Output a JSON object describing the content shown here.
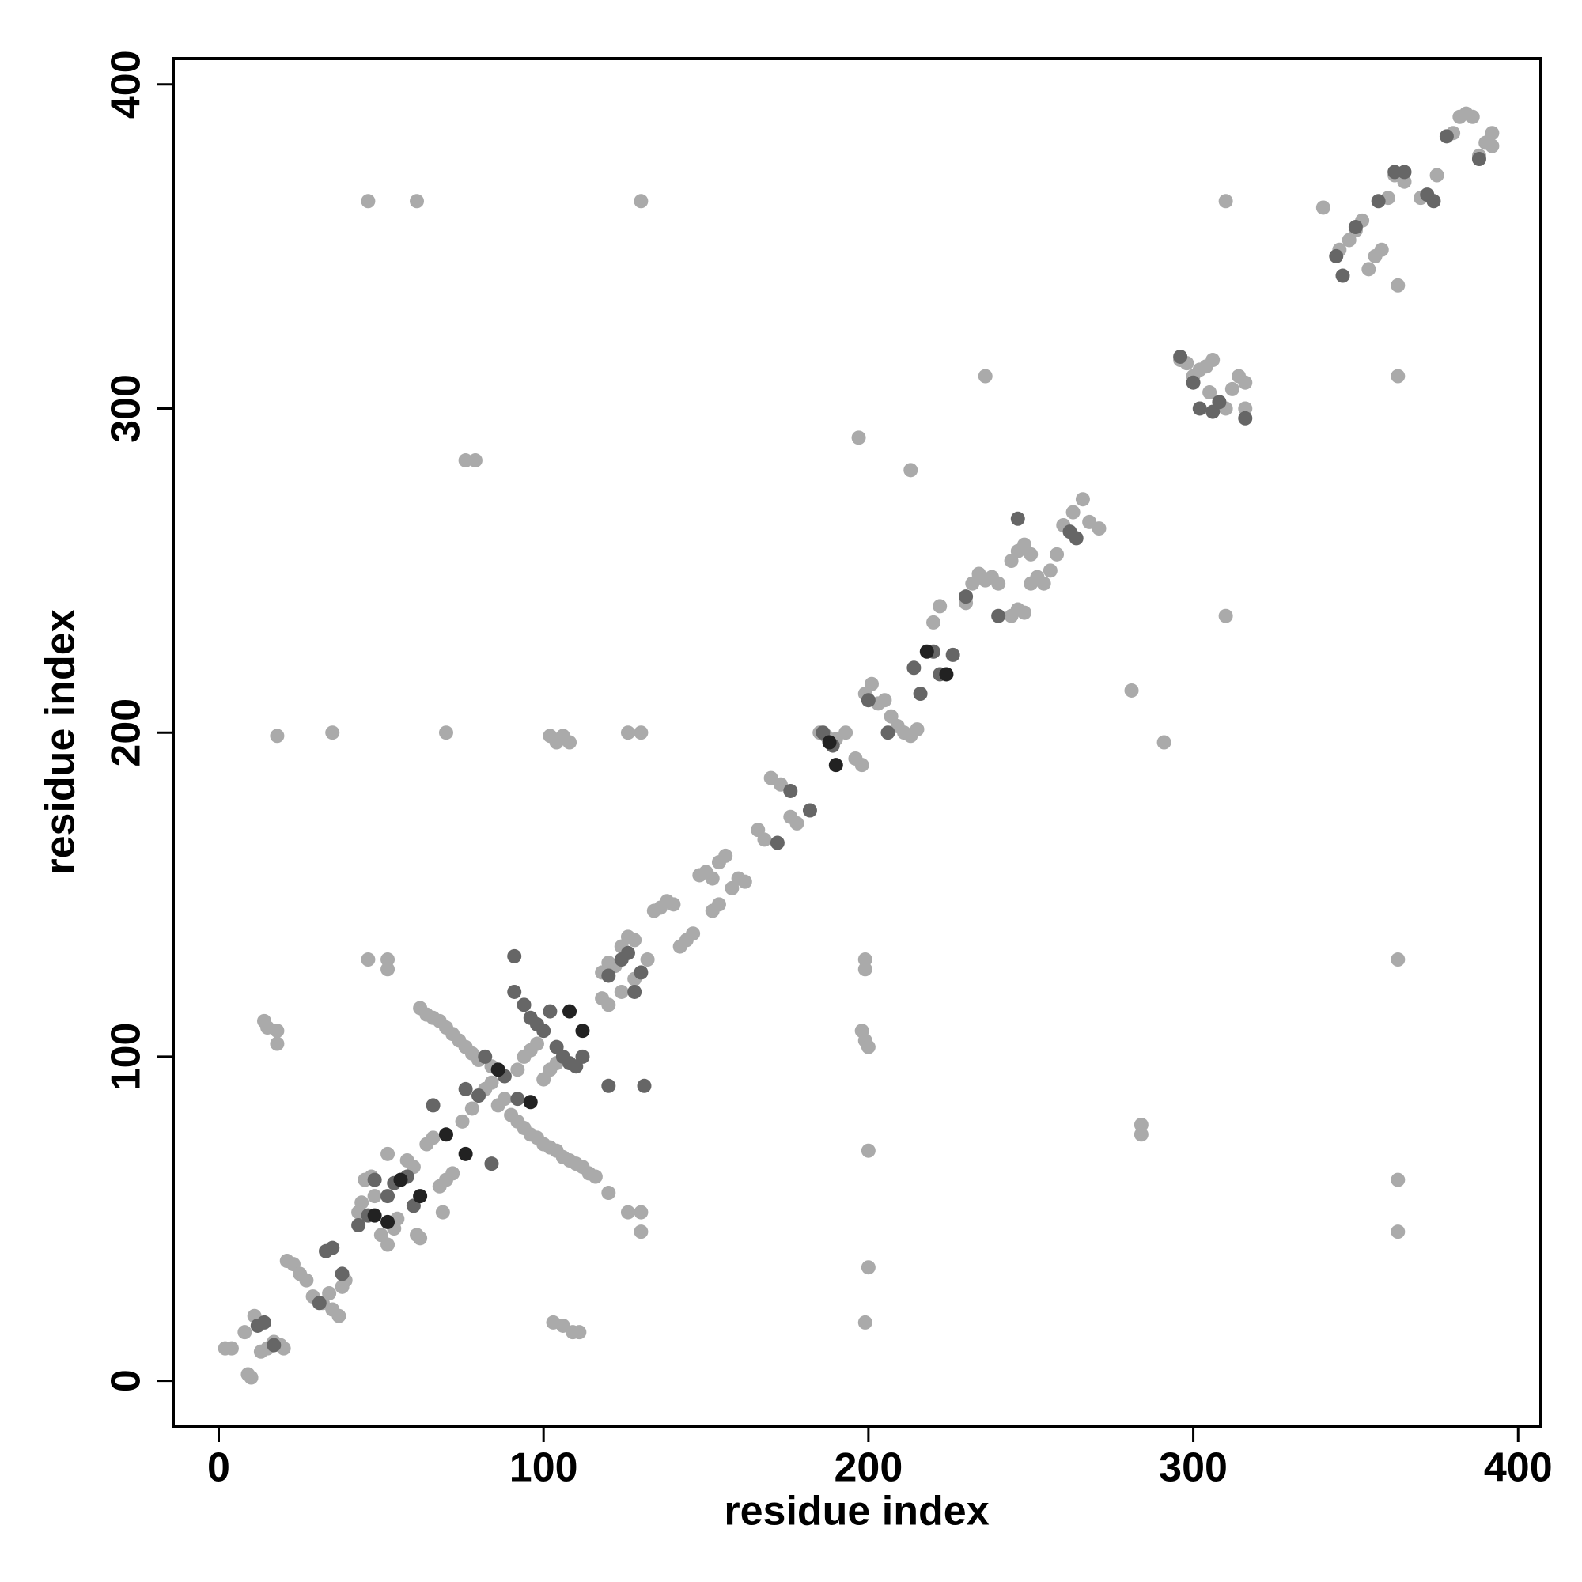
{
  "chart_data": {
    "type": "scatter",
    "xlabel": "residue index",
    "ylabel": "residue index",
    "xlim": [
      -14,
      407
    ],
    "ylim": [
      -14,
      408
    ],
    "xticks": [
      0,
      100,
      200,
      300,
      400
    ],
    "yticks": [
      0,
      100,
      200,
      300,
      400
    ],
    "series": [
      {
        "color": "#aaaaaa",
        "x": [
          2,
          4,
          8,
          9,
          10,
          11,
          13,
          15,
          17,
          19,
          20,
          21,
          23,
          25,
          27,
          29,
          32,
          34,
          35,
          37,
          38,
          39,
          43,
          44,
          45,
          47,
          48,
          50,
          52,
          52,
          54,
          55,
          58,
          60,
          62,
          64,
          66,
          68,
          70,
          72,
          75,
          78,
          80,
          82,
          84,
          86,
          88,
          90,
          92,
          94,
          96,
          98,
          100,
          102,
          104,
          62,
          64,
          66,
          68,
          70,
          72,
          74,
          76,
          78,
          80,
          84,
          92,
          94,
          96,
          98,
          100,
          102,
          104,
          106,
          108,
          110,
          112,
          114,
          116,
          120,
          118,
          120,
          122,
          124,
          126,
          128,
          118,
          120,
          124,
          128,
          132,
          134,
          136,
          138,
          140,
          142,
          144,
          146,
          148,
          150,
          152,
          154,
          156,
          152,
          154,
          158,
          160,
          162,
          166,
          168,
          170,
          173,
          176,
          178,
          185,
          187,
          190,
          193,
          196,
          198,
          199,
          201,
          203,
          205,
          207,
          209,
          211,
          213,
          215,
          220,
          222,
          230,
          232,
          234,
          236,
          238,
          240,
          244,
          246,
          248,
          250,
          244,
          246,
          248,
          250,
          252,
          254,
          256,
          258,
          260,
          263,
          266,
          268,
          271,
          296,
          298,
          300,
          302,
          304,
          306,
          308,
          310,
          312,
          314,
          316,
          316,
          305,
          340,
          345,
          348,
          350,
          352,
          354,
          356,
          358,
          360,
          362,
          365,
          363,
          370,
          375,
          380,
          382,
          384,
          386,
          388,
          390,
          392,
          392,
          46,
          61,
          130,
          310,
          236,
          363,
          76,
          79,
          197,
          213,
          281,
          291,
          310,
          18,
          35,
          70,
          102,
          104,
          106,
          108,
          126,
          130,
          46,
          52,
          52,
          363,
          199,
          199,
          14,
          15,
          18,
          18,
          198,
          199,
          200,
          284,
          284,
          200,
          363,
          363,
          200,
          199,
          103,
          106,
          109,
          111,
          126,
          130,
          130,
          61,
          69
        ],
        "values": [
          10,
          10,
          15,
          2,
          1,
          20,
          9,
          10,
          12,
          11,
          10,
          37,
          36,
          33,
          31,
          26,
          24,
          27,
          22,
          20,
          29,
          31,
          52,
          55,
          62,
          63,
          57,
          45,
          42,
          70,
          47,
          50,
          68,
          66,
          44,
          73,
          75,
          60,
          62,
          64,
          80,
          84,
          88,
          90,
          92,
          85,
          87,
          82,
          96,
          100,
          102,
          104,
          93,
          96,
          98,
          115,
          113,
          112,
          111,
          109,
          107,
          105,
          103,
          101,
          99,
          97,
          80,
          78,
          76,
          75,
          73,
          72,
          71,
          69,
          68,
          67,
          66,
          64,
          63,
          58,
          126,
          129,
          128,
          134,
          137,
          136,
          118,
          116,
          120,
          124,
          130,
          145,
          146,
          148,
          147,
          134,
          136,
          138,
          156,
          157,
          155,
          160,
          162,
          145,
          147,
          152,
          155,
          154,
          170,
          167,
          186,
          184,
          174,
          172,
          200,
          199,
          198,
          200,
          192,
          190,
          212,
          215,
          209,
          210,
          205,
          202,
          200,
          199,
          201,
          234,
          239,
          240,
          246,
          249,
          247,
          248,
          246,
          253,
          256,
          258,
          255,
          236,
          238,
          237,
          246,
          248,
          246,
          250,
          255,
          264,
          268,
          272,
          265,
          263,
          315,
          314,
          310,
          312,
          313,
          315,
          302,
          300,
          306,
          310,
          308,
          300,
          305,
          362,
          349,
          352,
          355,
          358,
          343,
          347,
          349,
          365,
          372,
          370,
          338,
          365,
          372,
          385,
          390,
          391,
          390,
          378,
          382,
          385,
          381,
          364,
          364,
          364,
          364,
          310,
          310,
          284,
          284,
          291,
          281,
          213,
          197,
          236,
          199,
          200,
          200,
          199,
          197,
          199,
          197,
          200,
          200,
          130,
          130,
          127,
          130,
          130,
          127,
          111,
          109,
          108,
          104,
          108,
          105,
          103,
          79,
          76,
          71,
          62,
          46,
          35,
          18,
          18,
          17,
          15,
          15,
          52,
          52,
          46,
          45,
          52
        ]
      },
      {
        "color": "#666666",
        "x": [
          12,
          14,
          17,
          31,
          33,
          35,
          38,
          43,
          46,
          48,
          52,
          54,
          58,
          60,
          66,
          76,
          80,
          82,
          84,
          88,
          91,
          91,
          92,
          94,
          96,
          98,
          100,
          102,
          104,
          106,
          108,
          110,
          112,
          120,
          131,
          120,
          124,
          126,
          130,
          128,
          172,
          176,
          182,
          186,
          189,
          200,
          206,
          214,
          216,
          220,
          222,
          226,
          230,
          240,
          246,
          262,
          264,
          296,
          300,
          302,
          306,
          308,
          316,
          344,
          346,
          350,
          357,
          362,
          365,
          372,
          374,
          378,
          388
        ],
        "values": [
          17,
          18,
          11,
          24,
          40,
          41,
          33,
          48,
          51,
          62,
          57,
          61,
          63,
          54,
          85,
          90,
          88,
          100,
          67,
          94,
          131,
          120,
          87,
          116,
          112,
          110,
          108,
          114,
          103,
          100,
          98,
          97,
          100,
          91,
          91,
          125,
          130,
          132,
          126,
          120,
          166,
          182,
          176,
          200,
          196,
          210,
          200,
          220,
          212,
          225,
          218,
          224,
          242,
          236,
          266,
          262,
          260,
          316,
          308,
          300,
          299,
          302,
          297,
          347,
          341,
          356,
          364,
          373,
          373,
          366,
          364,
          384,
          377
        ]
      },
      {
        "color": "#222222",
        "x": [
          56,
          62,
          70,
          76,
          86,
          96,
          108,
          112,
          190,
          188,
          218,
          224,
          48,
          52
        ],
        "values": [
          62,
          57,
          76,
          70,
          96,
          86,
          114,
          108,
          190,
          197,
          225,
          218,
          51,
          49
        ]
      }
    ]
  }
}
